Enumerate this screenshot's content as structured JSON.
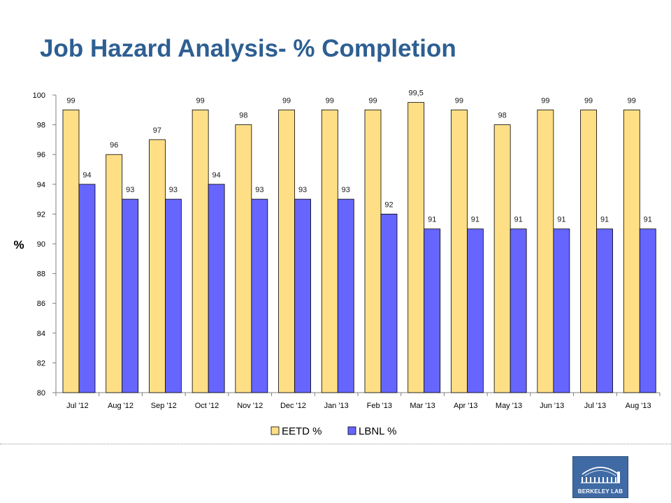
{
  "slide": {
    "title": "Job Hazard Analysis- % Completion",
    "logo_text": "BERKELEY LAB"
  },
  "colors": {
    "title": "#2e5f92",
    "eetd": "#ffdf86",
    "lbnl": "#6666ff",
    "logo_bg": "#3f6aa3"
  },
  "chart_data": {
    "type": "bar",
    "title": "",
    "xlabel": "",
    "ylabel": "%",
    "ylim": [
      80,
      100
    ],
    "ytick_step": 2,
    "grid": false,
    "legend_position": "bottom",
    "categories": [
      "Jul '12",
      "Aug '12",
      "Sep '12",
      "Oct '12",
      "Nov '12",
      "Dec '12",
      "Jan '13",
      "Feb '13",
      "Mar '13",
      "Apr '13",
      "May '13",
      "Jun '13",
      "Jul '13",
      "Aug '13"
    ],
    "series": [
      {
        "name": "EETD %",
        "color": "#ffdf86",
        "values": [
          99,
          96,
          97,
          99,
          98,
          99,
          99,
          99,
          99.5,
          99,
          98,
          99,
          99,
          99
        ],
        "labels": [
          "99",
          "96",
          "97",
          "99",
          "98",
          "99",
          "99",
          "99",
          "99,5",
          "99",
          "98",
          "99",
          "99",
          "99"
        ]
      },
      {
        "name": "LBNL %",
        "color": "#6666ff",
        "values": [
          94,
          93,
          93,
          94,
          93,
          93,
          93,
          92,
          91,
          91,
          91,
          91,
          91,
          91
        ],
        "labels": [
          "94",
          "93",
          "93",
          "94",
          "93",
          "93",
          "93",
          "92",
          "91",
          "91",
          "91",
          "91",
          "91",
          "91"
        ]
      }
    ]
  }
}
